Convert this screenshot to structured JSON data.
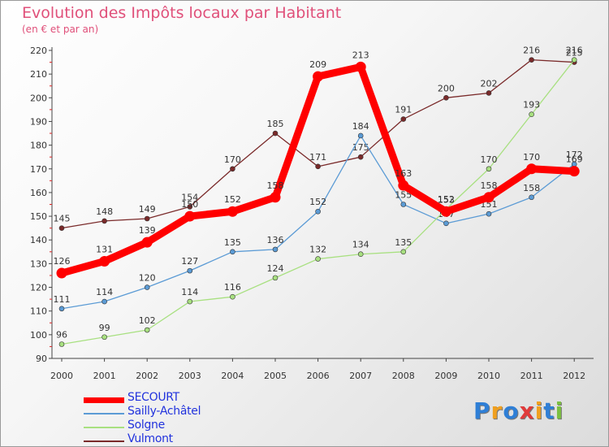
{
  "chart_data": {
    "type": "line",
    "title": "Evolution des Impôts locaux par Habitant",
    "subtitle": "(en € et par an)",
    "xlabel": "",
    "ylabel": "",
    "ylim": [
      90,
      220
    ],
    "yticks": [
      90,
      100,
      110,
      120,
      130,
      140,
      150,
      160,
      170,
      180,
      190,
      200,
      210,
      220
    ],
    "categories": [
      "2000",
      "2001",
      "2002",
      "2003",
      "2004",
      "2005",
      "2006",
      "2007",
      "2008",
      "2009",
      "2010",
      "2011",
      "2012"
    ],
    "grid": false,
    "legend_position": "bottom-left",
    "series": [
      {
        "name": "Vulmont",
        "color": "#7a2a2a",
        "values": [
          145,
          148,
          149,
          154,
          170,
          185,
          171,
          175,
          191,
          200,
          202,
          216,
          215
        ]
      },
      {
        "name": "Sailly-Achâtel",
        "color": "#5b9bd5",
        "values": [
          111,
          114,
          120,
          127,
          135,
          136,
          152,
          184,
          155,
          147,
          151,
          158,
          172
        ]
      },
      {
        "name": "Solgne",
        "color": "#a8e080",
        "values": [
          96,
          99,
          102,
          114,
          116,
          124,
          132,
          134,
          135,
          153,
          170,
          193,
          216
        ]
      },
      {
        "name": "SECOURT",
        "color": "#ff0000",
        "values": [
          126,
          131,
          139,
          150,
          152,
          158,
          209,
          213,
          163,
          152,
          158,
          170,
          169
        ]
      }
    ],
    "legend": [
      {
        "name": "SECOURT",
        "color": "#ff0000",
        "thick": true
      },
      {
        "name": "Sailly-Achâtel",
        "color": "#5b9bd5",
        "thick": false
      },
      {
        "name": "Solgne",
        "color": "#a8e080",
        "thick": false
      },
      {
        "name": "Vulmont",
        "color": "#7a2a2a",
        "thick": false
      }
    ]
  },
  "logo": {
    "letters": [
      "P",
      "r",
      "o",
      "x",
      "i",
      "t",
      "i"
    ],
    "colors": [
      "#2f7fd6",
      "#f0a020",
      "#2f7fd6",
      "#e03a3a",
      "#f0a020",
      "#2f7fd6",
      "#7cc040"
    ]
  }
}
